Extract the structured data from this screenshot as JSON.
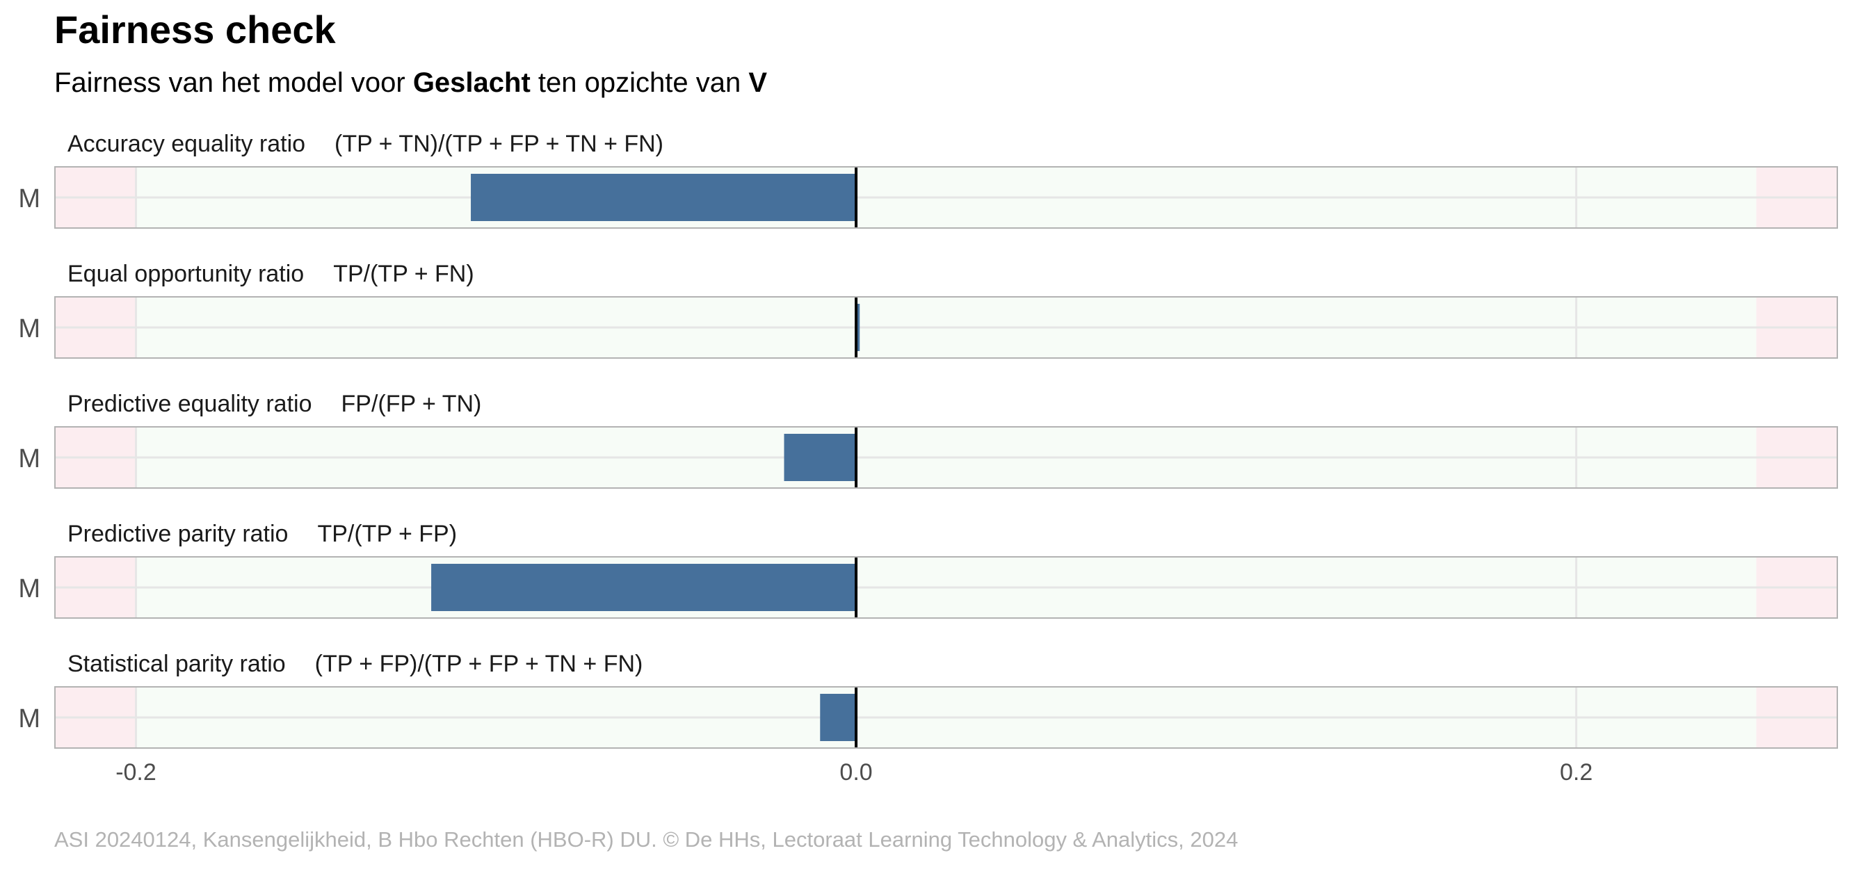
{
  "title": "Fairness check",
  "subtitle": {
    "prefix": "Fairness van het model voor ",
    "variable": "Geslacht",
    "middle": " ten opzichte van ",
    "reference": "V"
  },
  "caption": "ASI 20240124, Kansengelijkheid, B Hbo Rechten (HBO-R) DU. © De HHs, Lectoraat Learning Technology & Analytics, 2024",
  "colors": {
    "bar": "#46709B",
    "fair_zone": "#F7FCF7",
    "unfair_zone": "#FCEDF0",
    "zero_line": "#000000",
    "panel_border": "#b3b3b3",
    "grid": "#e6e6e6"
  },
  "chart_data": {
    "type": "bar",
    "orientation": "horizontal",
    "facets": [
      {
        "metric": "Accuracy equality ratio",
        "formula": "(TP + TN)/(TP + FP + TN + FN)",
        "category": "M",
        "value": -0.107
      },
      {
        "metric": "Equal opportunity ratio",
        "formula": "TP/(TP + FN)",
        "category": "M",
        "value": 0.001
      },
      {
        "metric": "Predictive equality ratio",
        "formula": "FP/(FP + TN)",
        "category": "M",
        "value": -0.02
      },
      {
        "metric": "Predictive parity ratio",
        "formula": "TP/(TP + FP)",
        "category": "M",
        "value": -0.118
      },
      {
        "metric": "Statistical parity ratio",
        "formula": "(TP + FP)/(TP + FP + TN + FN)",
        "category": "M",
        "value": -0.01
      }
    ],
    "xlim": [
      -0.2225,
      0.2725
    ],
    "fair_range": [
      -0.2,
      0.25
    ],
    "x_ticks": [
      "-0.2",
      "0.0",
      "0.2"
    ],
    "x_tick_values": [
      -0.2,
      0.0,
      0.2
    ],
    "grid": true,
    "legend": "none"
  }
}
